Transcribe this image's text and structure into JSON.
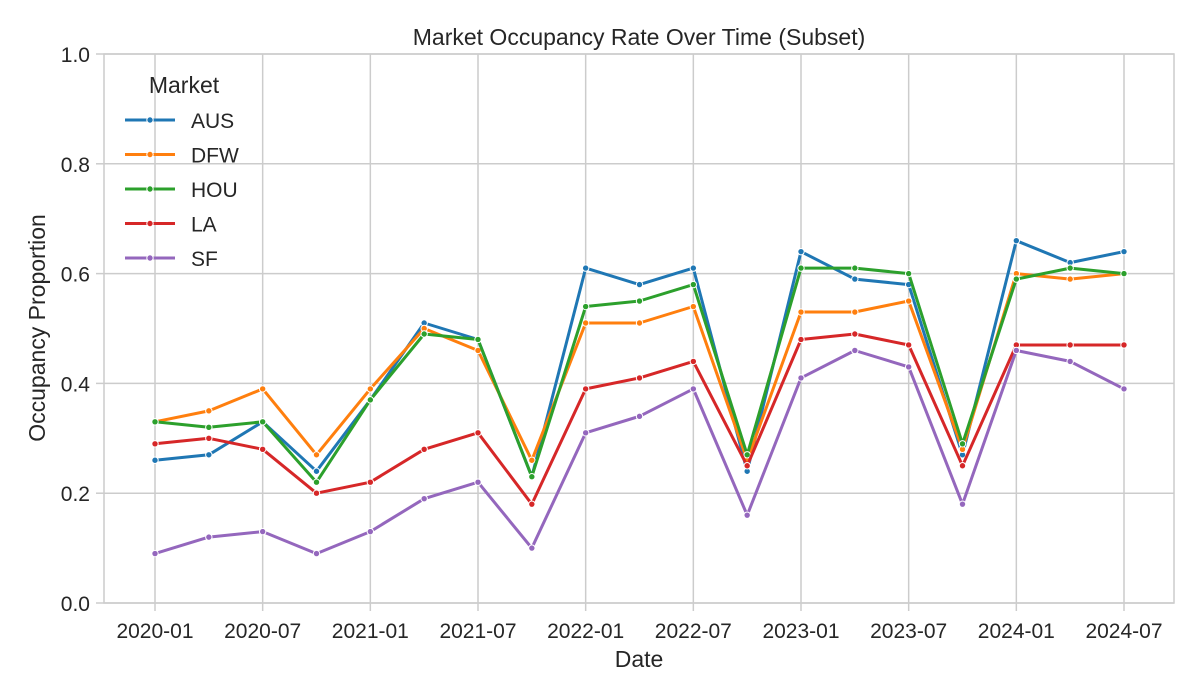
{
  "chart_data": {
    "type": "line",
    "title": "Market Occupancy Rate Over Time (Subset)",
    "xlabel": "Date",
    "ylabel": "Occupancy Proportion",
    "x": [
      "2020-01",
      "2020-04",
      "2020-07",
      "2020-10",
      "2021-01",
      "2021-04",
      "2021-07",
      "2021-10",
      "2022-01",
      "2022-04",
      "2022-07",
      "2022-10",
      "2023-01",
      "2023-04",
      "2023-07",
      "2023-10",
      "2024-01",
      "2024-04",
      "2024-07"
    ],
    "xticks": [
      "2020-01",
      "2020-07",
      "2021-01",
      "2021-07",
      "2022-01",
      "2022-07",
      "2023-01",
      "2023-07",
      "2024-01",
      "2024-07"
    ],
    "ylim": [
      0,
      1.0
    ],
    "yticks": [
      "0.0",
      "0.2",
      "0.4",
      "0.6",
      "0.8",
      "1.0"
    ],
    "grid": true,
    "legend": {
      "title": "Market",
      "placement": "top-left"
    },
    "series": [
      {
        "name": "AUS",
        "color": "#1f77b4",
        "values": [
          0.26,
          0.27,
          0.33,
          0.24,
          0.37,
          0.51,
          0.48,
          0.23,
          0.61,
          0.58,
          0.61,
          0.24,
          0.64,
          0.59,
          0.58,
          0.27,
          0.66,
          0.62,
          0.64
        ]
      },
      {
        "name": "DFW",
        "color": "#ff7f0e",
        "values": [
          0.33,
          0.35,
          0.39,
          0.27,
          0.39,
          0.5,
          0.46,
          0.26,
          0.51,
          0.51,
          0.54,
          0.26,
          0.53,
          0.53,
          0.55,
          0.28,
          0.6,
          0.59,
          0.6
        ]
      },
      {
        "name": "HOU",
        "color": "#2ca02c",
        "values": [
          0.33,
          0.32,
          0.33,
          0.22,
          0.37,
          0.49,
          0.48,
          0.23,
          0.54,
          0.55,
          0.58,
          0.27,
          0.61,
          0.61,
          0.6,
          0.29,
          0.59,
          0.61,
          0.6
        ]
      },
      {
        "name": "LA",
        "color": "#d62728",
        "values": [
          0.29,
          0.3,
          0.28,
          0.2,
          0.22,
          0.28,
          0.31,
          0.18,
          0.39,
          0.41,
          0.44,
          0.25,
          0.48,
          0.49,
          0.47,
          0.25,
          0.47,
          0.47,
          0.47
        ]
      },
      {
        "name": "SF",
        "color": "#9467bd",
        "values": [
          0.09,
          0.12,
          0.13,
          0.09,
          0.13,
          0.19,
          0.22,
          0.1,
          0.31,
          0.34,
          0.39,
          0.16,
          0.41,
          0.46,
          0.43,
          0.18,
          0.46,
          0.44,
          0.39
        ]
      }
    ]
  }
}
